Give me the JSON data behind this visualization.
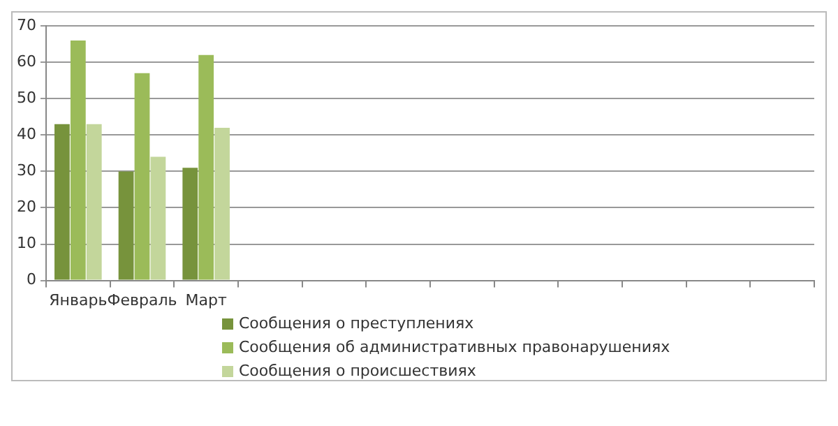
{
  "chart_data": {
    "type": "bar",
    "categories": [
      "Январь",
      "Февраль",
      "Март",
      null,
      null,
      null,
      null,
      null,
      null,
      null,
      null,
      null
    ],
    "series": [
      {
        "name": "Сообщения  о преступлениях",
        "color": "#77933c",
        "values": [
          43,
          30,
          31,
          null,
          null,
          null,
          null,
          null,
          null,
          null,
          null,
          null
        ]
      },
      {
        "name": "Сообщения  об административных правонарушениях",
        "color": "#9bbb59",
        "values": [
          66,
          57,
          62,
          null,
          null,
          null,
          null,
          null,
          null,
          null,
          null,
          null
        ]
      },
      {
        "name": "Сообщения  о происшествиях",
        "color": "#c3d69b",
        "values": [
          43,
          34,
          42,
          null,
          null,
          null,
          null,
          null,
          null,
          null,
          null,
          null
        ]
      }
    ],
    "ylim": [
      0,
      70
    ],
    "yticks": [
      0,
      10,
      20,
      30,
      40,
      50,
      60,
      70
    ],
    "grid": "y",
    "legend": "bottom"
  }
}
